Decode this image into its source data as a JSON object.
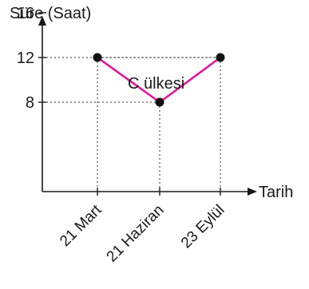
{
  "chart_data": {
    "type": "line",
    "title": "C ülkesi",
    "xlabel": "Tarih",
    "ylabel": "Süre (Saat)",
    "categories": [
      "21 Mart",
      "21 Haziran",
      "23 Eylül"
    ],
    "series": [
      {
        "values": [
          12,
          8,
          12
        ],
        "color": "#e0179a"
      }
    ],
    "yticks": [
      8,
      12,
      16
    ],
    "ylim": [
      0,
      20
    ],
    "grid": "dotted guide lines to each point",
    "legend": "none"
  }
}
